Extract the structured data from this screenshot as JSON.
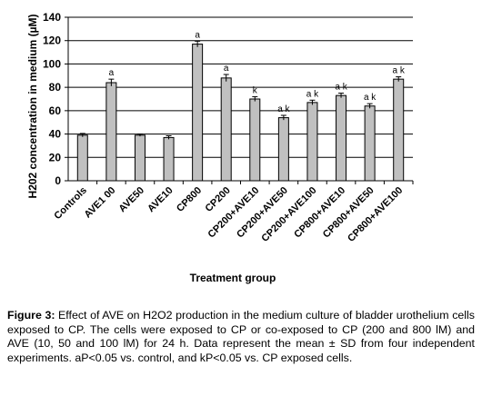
{
  "chart_data": {
    "type": "bar",
    "categories": [
      "Controls",
      "AVE1 00",
      "AVE50",
      "AVE10",
      "CP800",
      "CP200",
      "CP200+AVE10",
      "CP200+AVE50",
      "CP200+AVE100",
      "CP800+AVE10",
      "CP800+AVE50",
      "CP800+AVE100"
    ],
    "values": [
      39,
      84,
      39,
      37,
      117,
      88,
      70,
      54,
      67,
      73,
      64,
      87
    ],
    "errors": [
      1.5,
      3,
      1,
      1.5,
      2.5,
      3,
      2,
      2,
      2,
      2,
      2,
      2
    ],
    "annotations": [
      "",
      "a",
      "",
      "",
      "a",
      "a",
      "k",
      "a k",
      "a k",
      "a k",
      "a k",
      "a k"
    ],
    "xlabel": "Treatment group",
    "ylabel": "H202 concentration in medium (µM)",
    "ylim": [
      0,
      140
    ],
    "yticks": [
      0,
      20,
      40,
      60,
      80,
      100,
      120,
      140
    ],
    "grid": true,
    "colors": {
      "bar": "#c0c0c0",
      "bar_edge": "#000000",
      "grid": "#000000"
    }
  },
  "caption": {
    "label": "Figure 3:",
    "text": "Effect of AVE on H2O2 production in the medium culture of bladder urothelium cells exposed to CP. The cells were exposed to CP or co-exposed to CP (200 and 800 lM) and AVE (10, 50 and 100 lM) for 24 h. Data represent the mean ± SD from four independent experiments. aP<0.05 vs. control, and kP<0.05 vs. CP exposed cells."
  }
}
